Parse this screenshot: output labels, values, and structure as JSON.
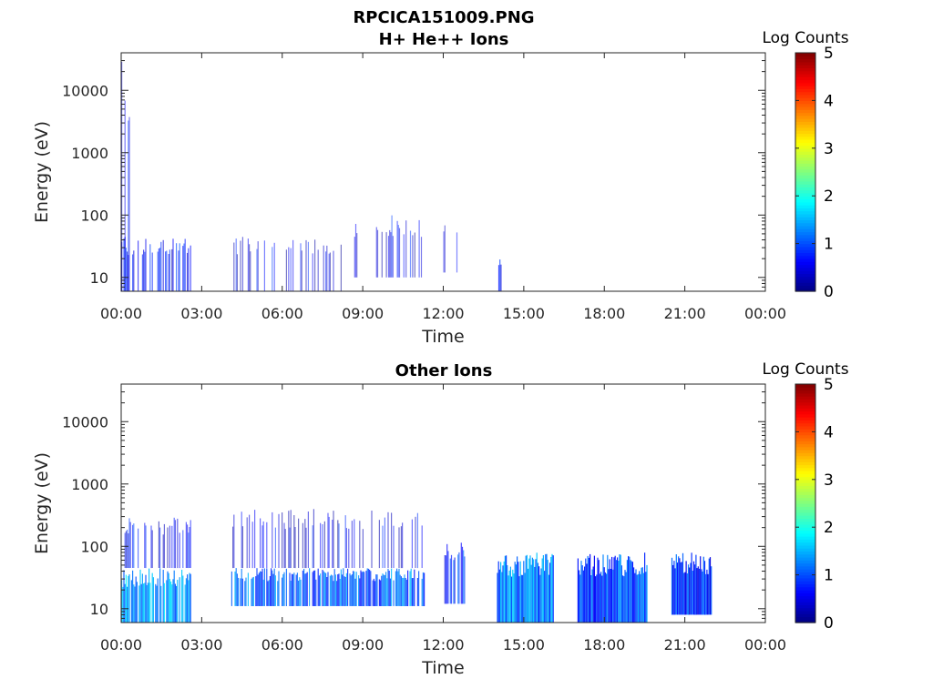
{
  "figure": {
    "title_line1": "RPCICA151009.PNG",
    "title_line2": "H+ He++ Ions"
  },
  "chart_data": [
    {
      "type": "heatmap",
      "title": "H+ He++ Ions",
      "xlabel": "Time",
      "ylabel": "Energy (eV)",
      "x_ticks": [
        "00:00",
        "03:00",
        "06:00",
        "09:00",
        "12:00",
        "15:00",
        "18:00",
        "21:00",
        "00:00"
      ],
      "xlim_hours": [
        0,
        24
      ],
      "y_ticks": [
        "10",
        "100",
        "1000",
        "10000"
      ],
      "ylim": [
        6,
        40000
      ],
      "y_scale": "log",
      "colorbar": {
        "label": "Log Counts",
        "ticks": [
          "0",
          "1",
          "2",
          "3",
          "4",
          "5"
        ],
        "range": [
          0,
          5
        ],
        "colormap": "jet"
      },
      "blocks": [
        {
          "t0": 0.0,
          "t1": 0.6,
          "e_lo": 6,
          "e_hi": 30000,
          "level": 0.5,
          "density": 0.3
        },
        {
          "t0": 0.0,
          "t1": 2.6,
          "e_lo": 6,
          "e_hi": 45,
          "level": 0.6,
          "density": 0.5
        },
        {
          "t0": 4.1,
          "t1": 8.2,
          "e_lo": 6,
          "e_hi": 45,
          "level": 0.5,
          "density": 0.3
        },
        {
          "t0": 8.6,
          "t1": 11.3,
          "e_lo": 10,
          "e_hi": 100,
          "level": 0.5,
          "density": 0.3
        },
        {
          "t0": 12.0,
          "t1": 12.8,
          "e_lo": 12,
          "e_hi": 80,
          "level": 0.4,
          "density": 0.25
        },
        {
          "t0": 14.05,
          "t1": 14.15,
          "e_lo": 6,
          "e_hi": 20,
          "level": 0.5,
          "density": 0.6
        }
      ]
    },
    {
      "type": "heatmap",
      "title": "Other Ions",
      "xlabel": "Time",
      "ylabel": "Energy (eV)",
      "x_ticks": [
        "00:00",
        "03:00",
        "06:00",
        "09:00",
        "12:00",
        "15:00",
        "18:00",
        "21:00",
        "00:00"
      ],
      "xlim_hours": [
        0,
        24
      ],
      "y_ticks": [
        "10",
        "100",
        "1000",
        "10000"
      ],
      "ylim": [
        6,
        40000
      ],
      "y_scale": "log",
      "colorbar": {
        "label": "Log Counts",
        "ticks": [
          "0",
          "1",
          "2",
          "3",
          "4",
          "5"
        ],
        "range": [
          0,
          5
        ],
        "colormap": "jet"
      },
      "blocks": [
        {
          "t0": 0.0,
          "t1": 2.6,
          "e_lo": 6,
          "e_hi": 45,
          "level": 1.4,
          "density": 0.9
        },
        {
          "t0": 0.0,
          "t1": 2.6,
          "e_lo": 45,
          "e_hi": 300,
          "level": 0.6,
          "density": 0.4
        },
        {
          "t0": 4.1,
          "t1": 11.3,
          "e_lo": 11,
          "e_hi": 45,
          "level": 1.1,
          "density": 0.8
        },
        {
          "t0": 4.1,
          "t1": 11.3,
          "e_lo": 45,
          "e_hi": 400,
          "level": 0.5,
          "density": 0.35
        },
        {
          "t0": 12.0,
          "t1": 12.8,
          "e_lo": 12,
          "e_hi": 120,
          "level": 0.9,
          "density": 0.6
        },
        {
          "t0": 14.0,
          "t1": 16.1,
          "e_lo": 6,
          "e_hi": 80,
          "level": 1.2,
          "density": 1.0
        },
        {
          "t0": 17.0,
          "t1": 19.6,
          "e_lo": 6,
          "e_hi": 80,
          "level": 1.0,
          "density": 1.0
        },
        {
          "t0": 20.5,
          "t1": 22.0,
          "e_lo": 8,
          "e_hi": 80,
          "level": 0.8,
          "density": 1.0
        }
      ]
    }
  ]
}
